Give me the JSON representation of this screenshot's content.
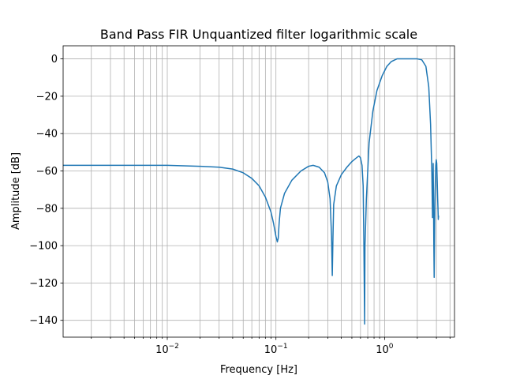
{
  "chart_data": {
    "type": "line",
    "title": "Band Pass FIR Unquantized filter logarithmic scale",
    "xlabel": "Frequency [Hz]",
    "ylabel": "Amplitude [dB]",
    "xscale": "log",
    "xlim": [
      0.0011,
      4.4
    ],
    "ylim": [
      -149,
      7
    ],
    "grid": "both-major-and-minor",
    "colors": {
      "line": "#1f77b4",
      "grid": "#b0b0b0"
    },
    "x_ticks": [
      {
        "value": 0.01,
        "label": "10−2",
        "base": "10",
        "exp": "−2"
      },
      {
        "value": 0.1,
        "label": "10−1",
        "base": "10",
        "exp": "−1"
      },
      {
        "value": 1,
        "label": "10⁰",
        "base": "10",
        "exp": "0"
      }
    ],
    "y_ticks": [
      {
        "value": 0,
        "label": "0"
      },
      {
        "value": -20,
        "label": "−20"
      },
      {
        "value": -40,
        "label": "−40"
      },
      {
        "value": -60,
        "label": "−60"
      },
      {
        "value": -80,
        "label": "−80"
      },
      {
        "value": -100,
        "label": "−100"
      },
      {
        "value": -120,
        "label": "−120"
      },
      {
        "value": -140,
        "label": "−140"
      }
    ],
    "series": [
      {
        "x": [
          0.0011,
          0.002,
          0.005,
          0.01,
          0.02,
          0.03,
          0.04,
          0.05,
          0.06,
          0.07,
          0.08,
          0.09,
          0.095,
          0.1,
          0.103,
          0.105,
          0.107,
          0.11,
          0.12,
          0.14,
          0.17,
          0.2,
          0.22,
          0.25,
          0.28,
          0.3,
          0.315,
          0.325,
          0.33,
          0.335,
          0.34,
          0.36,
          0.4,
          0.45,
          0.5,
          0.55,
          0.58,
          0.6,
          0.62,
          0.635,
          0.645,
          0.655,
          0.66,
          0.68,
          0.72,
          0.78,
          0.85,
          0.95,
          1.05,
          1.15,
          1.3,
          1.5,
          1.8,
          2.0,
          2.2,
          2.4,
          2.55,
          2.65,
          2.72,
          2.76,
          2.78,
          2.8,
          2.82,
          2.84,
          2.86,
          2.88,
          2.9,
          2.92,
          2.94,
          2.96,
          2.99,
          3.02,
          3.05,
          3.08,
          3.1,
          3.12,
          3.13,
          3.14
        ],
        "y": [
          -57,
          -57,
          -57,
          -57,
          -57.5,
          -58,
          -59,
          -61,
          -64,
          -68,
          -74,
          -82,
          -88,
          -95,
          -98,
          -96,
          -88,
          -80,
          -72,
          -65,
          -60,
          -57.5,
          -57,
          -58,
          -61,
          -66,
          -75,
          -95,
          -116,
          -95,
          -78,
          -68,
          -62,
          -58,
          -55,
          -53,
          -52,
          -53,
          -57,
          -68,
          -100,
          -142,
          -100,
          -75,
          -45,
          -28,
          -17,
          -9,
          -4,
          -1.5,
          0,
          0,
          0,
          0,
          -0.5,
          -4,
          -15,
          -35,
          -60,
          -85,
          -70,
          -56,
          -75,
          -100,
          -117,
          -100,
          -80,
          -70,
          -63,
          -57,
          -54,
          -56,
          -65,
          -75,
          -80,
          -86,
          -84,
          -85
        ]
      }
    ]
  }
}
